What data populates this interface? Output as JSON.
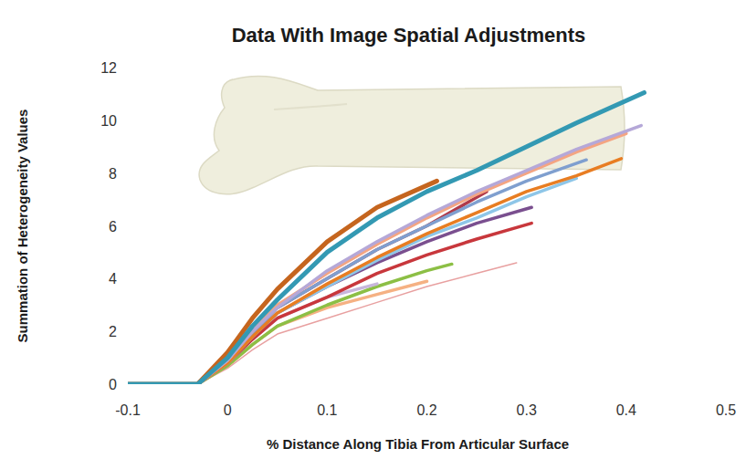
{
  "chart_data": {
    "type": "line",
    "title": "Data With Image Spatial Adjustments",
    "x_label": "% Distance Along Tibia From Articular Surface",
    "y_label": "Summation of Heterogeneity Values",
    "xlim": [
      -0.1,
      0.5
    ],
    "xticks": [
      -0.1,
      0,
      0.1,
      0.2,
      0.3,
      0.4,
      0.5
    ],
    "ylim": [
      0,
      12
    ],
    "yticks": [
      0,
      2,
      4,
      6,
      8,
      10,
      12
    ],
    "grid": false,
    "series": [
      {
        "color": "#e8a0a0",
        "x": [
          -0.1,
          -0.03,
          0,
          0.025,
          0.05,
          0.1,
          0.15,
          0.2,
          0.25,
          0.29
        ],
        "values": [
          0,
          0,
          0.6,
          1.3,
          1.9,
          2.5,
          3.1,
          3.7,
          4.2,
          4.6
        ]
      },
      {
        "color": "#f5b183",
        "x": [
          -0.1,
          -0.03,
          0,
          0.025,
          0.05,
          0.1,
          0.15,
          0.2
        ],
        "values": [
          0,
          0,
          0.7,
          1.5,
          2.2,
          2.9,
          3.4,
          3.9
        ]
      },
      {
        "color": "#8cbf45",
        "x": [
          -0.1,
          -0.03,
          0,
          0.025,
          0.05,
          0.1,
          0.15,
          0.2,
          0.225
        ],
        "values": [
          0,
          0,
          0.7,
          1.5,
          2.2,
          3.0,
          3.7,
          4.3,
          4.55
        ]
      },
      {
        "color": "#c8b6dc",
        "x": [
          -0.1,
          -0.03,
          0,
          0.025,
          0.05,
          0.1,
          0.15
        ],
        "values": [
          0,
          0,
          0.8,
          1.7,
          2.5,
          3.3,
          3.8
        ]
      },
      {
        "color": "#c8373c",
        "x": [
          -0.1,
          -0.03,
          0,
          0.025,
          0.05,
          0.1,
          0.15,
          0.2,
          0.25,
          0.305
        ],
        "values": [
          0,
          0,
          0.8,
          1.7,
          2.5,
          3.3,
          4.2,
          4.9,
          5.5,
          6.1
        ]
      },
      {
        "color": "#7a4f8f",
        "x": [
          -0.1,
          -0.03,
          0,
          0.025,
          0.05,
          0.1,
          0.15,
          0.2,
          0.25,
          0.305
        ],
        "values": [
          0,
          0,
          0.8,
          1.8,
          2.7,
          3.7,
          4.6,
          5.4,
          6.1,
          6.7
        ]
      },
      {
        "color": "#b03a4a",
        "x": [
          -0.1,
          -0.03,
          0,
          0.025,
          0.05,
          0.1,
          0.15,
          0.2,
          0.26
        ],
        "values": [
          0,
          0,
          0.9,
          1.9,
          2.9,
          4.0,
          5.1,
          6.0,
          7.3
        ]
      },
      {
        "color": "#8ec6e8",
        "x": [
          -0.1,
          -0.03,
          0,
          0.025,
          0.05,
          0.1,
          0.15,
          0.2,
          0.25,
          0.3,
          0.35
        ],
        "values": [
          0,
          0,
          0.8,
          1.8,
          2.7,
          3.7,
          4.7,
          5.6,
          6.3,
          7.1,
          7.8
        ]
      },
      {
        "color": "#7f9fcf",
        "x": [
          -0.1,
          -0.03,
          0,
          0.025,
          0.05,
          0.1,
          0.15,
          0.2,
          0.25,
          0.3,
          0.36
        ],
        "values": [
          0,
          0,
          0.9,
          1.9,
          2.9,
          4.0,
          5.1,
          6.0,
          6.9,
          7.7,
          8.5
        ]
      },
      {
        "color": "#e87d22",
        "x": [
          -0.1,
          -0.03,
          0,
          0.025,
          0.05,
          0.1,
          0.15,
          0.2,
          0.25,
          0.3,
          0.35,
          0.395
        ],
        "values": [
          0,
          0,
          0.8,
          1.8,
          2.7,
          3.8,
          4.8,
          5.7,
          6.5,
          7.3,
          7.9,
          8.55
        ]
      },
      {
        "color": "#f4a582",
        "x": [
          -0.1,
          -0.03,
          0,
          0.025,
          0.05,
          0.1,
          0.15,
          0.2,
          0.25,
          0.3,
          0.35,
          0.4
        ],
        "values": [
          0,
          0,
          0.9,
          2.0,
          3.0,
          4.2,
          5.3,
          6.3,
          7.2,
          8.0,
          8.8,
          9.5
        ]
      },
      {
        "color": "#b5a8d8",
        "x": [
          -0.1,
          -0.03,
          0,
          0.025,
          0.05,
          0.1,
          0.15,
          0.2,
          0.25,
          0.3,
          0.35,
          0.415
        ],
        "values": [
          0,
          0,
          0.9,
          2.0,
          2.9,
          4.3,
          5.4,
          6.4,
          7.3,
          8.1,
          8.9,
          9.8
        ]
      },
      {
        "color": "#c5651e",
        "x": [
          -0.1,
          -0.03,
          0,
          0.025,
          0.05,
          0.1,
          0.15,
          0.21
        ],
        "values": [
          0,
          0,
          1.2,
          2.5,
          3.6,
          5.4,
          6.7,
          7.7
        ]
      },
      {
        "color": "#3399b3",
        "x": [
          -0.1,
          -0.03,
          0,
          0.025,
          0.05,
          0.1,
          0.15,
          0.2,
          0.25,
          0.3,
          0.35,
          0.418
        ],
        "values": [
          0,
          0,
          1.0,
          2.2,
          3.2,
          5.0,
          6.3,
          7.3,
          8.1,
          9.0,
          9.9,
          11.05
        ]
      }
    ]
  }
}
